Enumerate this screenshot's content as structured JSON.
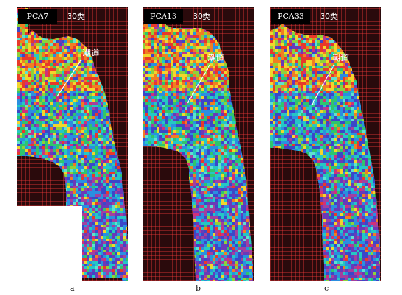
{
  "panels": [
    {
      "id": "a",
      "title": "PCA7",
      "classes": "30类",
      "channel_label": "潮道",
      "caption": "a"
    },
    {
      "id": "b",
      "title": "PCA13",
      "classes": "30类",
      "channel_label": "潮道",
      "caption": "b"
    },
    {
      "id": "c",
      "title": "PCA33",
      "classes": "30类",
      "channel_label": "潮道",
      "caption": "c"
    }
  ],
  "colors": {
    "grid_line": "#ff3c3c",
    "background": "#2a0a0c",
    "palette": [
      "#e8392a",
      "#f07e22",
      "#f2d52c",
      "#8fd13a",
      "#2fc46e",
      "#25c7c4",
      "#2a8fe0",
      "#3b47c8",
      "#6a3ab8",
      "#a3409e",
      "#d1307a",
      "#5fe0d0"
    ]
  }
}
